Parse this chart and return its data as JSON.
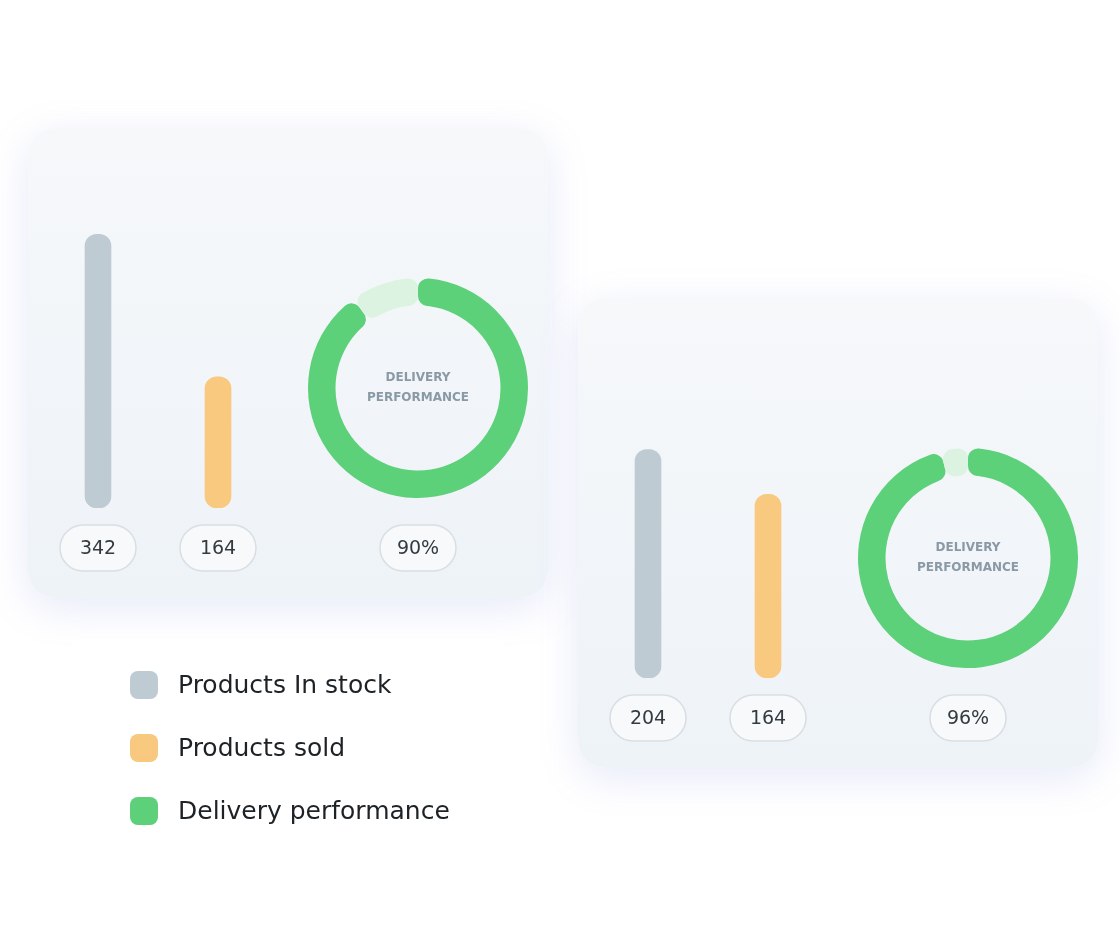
{
  "chart_data": [
    {
      "type": "bar",
      "categories": [
        null,
        null
      ],
      "series": [
        {
          "name": "Products In stock",
          "color": "#bfcbd3",
          "values": [
            342,
            null
          ]
        },
        {
          "name": "Products sold",
          "color": "#f8c97f",
          "values": [
            null,
            164
          ]
        }
      ],
      "stacked": true,
      "data_labels": true,
      "legend": "bottom"
    },
    {
      "type": "donut",
      "categories": [
        "Delivery performance",
        null
      ],
      "values": [
        90,
        10
      ],
      "colors": [
        "#5dd07a",
        "#dcf3e1"
      ],
      "value_labels": [
        "90%",
        null
      ],
      "annotations": [
        "DELIVERY PERFORMANCE"
      ],
      "legend": "bottom"
    },
    {
      "type": "bar",
      "categories": [
        null,
        null
      ],
      "series": [
        {
          "color": "#bfcbd3",
          "values": [
            204,
            null
          ]
        },
        {
          "color": "#f8c97f",
          "values": [
            null,
            164
          ]
        }
      ],
      "stacked": true,
      "data_labels": true
    },
    {
      "type": "donut",
      "categories": [
        null,
        null
      ],
      "values": [
        96,
        4
      ],
      "colors": [
        "#5dd07a",
        "#dcf3e1"
      ],
      "value_labels": [
        "96%",
        null
      ],
      "annotations": [
        "DELIVERY PERFORMANCE"
      ]
    }
  ]
}
